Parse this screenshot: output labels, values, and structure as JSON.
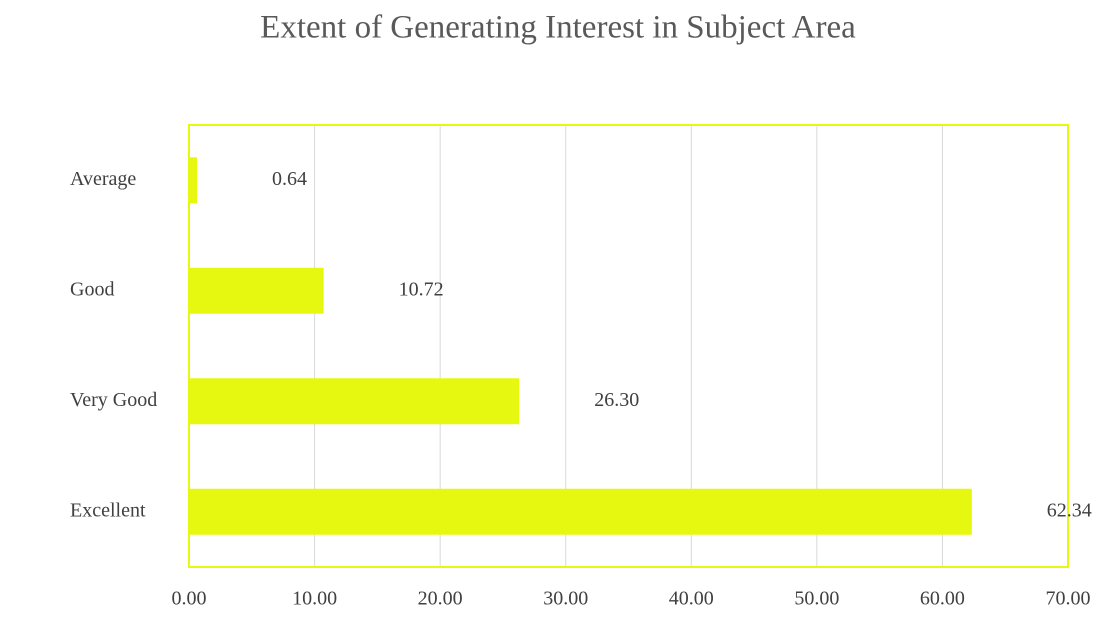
{
  "chart_data": {
    "type": "hbar",
    "title": "Extent of Generating Interest in Subject Area",
    "categories": [
      "Average",
      "Good",
      "Very Good",
      "Excellent"
    ],
    "values": [
      0.64,
      10.72,
      26.3,
      62.34
    ],
    "value_labels": [
      "0.64",
      "10.72",
      "26.30",
      "62.34"
    ],
    "color": "#e6f80f",
    "xlim": [
      0,
      70
    ],
    "xticks": [
      {
        "value": 0,
        "label": "0.00"
      },
      {
        "value": 10,
        "label": "10.00"
      },
      {
        "value": 20,
        "label": "20.00"
      },
      {
        "value": 30,
        "label": "30.00"
      },
      {
        "value": 40,
        "label": "40.00"
      },
      {
        "value": 50,
        "label": "50.00"
      },
      {
        "value": 60,
        "label": "60.00"
      },
      {
        "value": 70,
        "label": "70.00"
      }
    ],
    "grid": true
  }
}
